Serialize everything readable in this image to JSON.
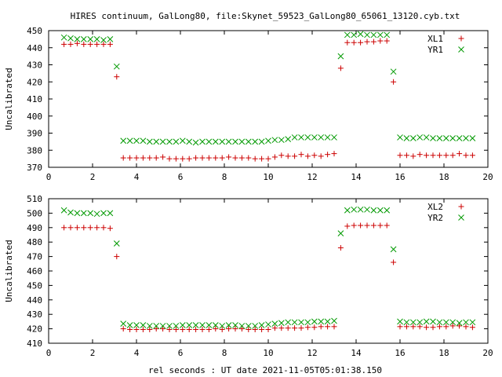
{
  "figure": {
    "title": "HIRES continuum, GalLong80, file:Skynet_59523_GalLong80_65061_13120.cyb.txt",
    "xlabel": "rel seconds : UT date 2021-11-05T05:01:38.150"
  },
  "colors": {
    "plus": "#cc0000",
    "cross": "#009900",
    "frame": "#000000"
  },
  "chart_data": [
    {
      "type": "scatter",
      "title": "HIRES continuum, GalLong80, file:Skynet_59523_GalLong80_65061_13120.cyb.txt",
      "xlabel": "",
      "ylabel": "Uncalibrated",
      "xlim": [
        0,
        20
      ],
      "ylim": [
        370,
        450
      ],
      "xticks": [
        0,
        2,
        4,
        6,
        8,
        10,
        12,
        14,
        16,
        18,
        20
      ],
      "yticks": [
        370,
        380,
        390,
        400,
        410,
        420,
        430,
        440,
        450
      ],
      "grid": false,
      "legend": "top-right",
      "series": [
        {
          "name": "XL1",
          "marker": "plus",
          "color": "#cc0000",
          "x": [
            0.7,
            1.0,
            1.3,
            1.6,
            1.9,
            2.2,
            2.5,
            2.8,
            3.1,
            3.4,
            3.7,
            4.0,
            4.3,
            4.6,
            4.9,
            5.2,
            5.5,
            5.8,
            6.1,
            6.4,
            6.7,
            7.0,
            7.3,
            7.6,
            7.9,
            8.2,
            8.5,
            8.8,
            9.1,
            9.4,
            9.7,
            10.0,
            10.3,
            10.6,
            10.9,
            11.2,
            11.5,
            11.8,
            12.1,
            12.4,
            12.7,
            13.0,
            13.3,
            13.6,
            13.9,
            14.2,
            14.5,
            14.8,
            15.1,
            15.4,
            15.7,
            16.0,
            16.3,
            16.6,
            16.9,
            17.2,
            17.5,
            17.8,
            18.1,
            18.4,
            18.7,
            19.0,
            19.3
          ],
          "y": [
            442,
            442,
            442.5,
            442,
            442,
            442,
            442,
            442,
            423,
            375.5,
            375.5,
            375.5,
            375.5,
            375.5,
            375.5,
            376,
            375,
            375,
            375,
            375,
            375.5,
            375.5,
            375.5,
            375.5,
            375.5,
            376,
            375.5,
            375.5,
            375.5,
            375,
            375,
            375,
            376,
            377,
            376.5,
            376.5,
            377.5,
            376.5,
            377,
            376.5,
            377.5,
            378,
            428,
            443,
            443,
            443,
            443.5,
            443.5,
            444,
            444,
            420,
            377,
            377,
            376.5,
            377.5,
            377,
            377,
            377,
            377,
            377,
            378,
            377,
            377
          ]
        },
        {
          "name": "YR1",
          "marker": "cross",
          "color": "#009900",
          "x": [
            0.7,
            1.0,
            1.3,
            1.6,
            1.9,
            2.2,
            2.5,
            2.8,
            3.1,
            3.4,
            3.7,
            4.0,
            4.3,
            4.6,
            4.9,
            5.2,
            5.5,
            5.8,
            6.1,
            6.4,
            6.7,
            7.0,
            7.3,
            7.6,
            7.9,
            8.2,
            8.5,
            8.8,
            9.1,
            9.4,
            9.7,
            10.0,
            10.3,
            10.6,
            10.9,
            11.2,
            11.5,
            11.8,
            12.1,
            12.4,
            12.7,
            13.0,
            13.3,
            13.6,
            13.9,
            14.2,
            14.5,
            14.8,
            15.1,
            15.4,
            15.7,
            16.0,
            16.3,
            16.6,
            16.9,
            17.2,
            17.5,
            17.8,
            18.1,
            18.4,
            18.7,
            19.0,
            19.3
          ],
          "y": [
            446,
            445.5,
            445,
            445,
            445,
            445,
            444.5,
            445,
            429,
            385.5,
            385.5,
            385.5,
            385.5,
            385,
            385,
            385,
            385,
            385,
            385.5,
            385,
            384.5,
            385,
            385,
            385,
            385,
            385,
            385,
            385,
            385,
            385,
            385,
            385.5,
            386,
            386,
            386.5,
            387.5,
            387.5,
            387.5,
            387.5,
            387.5,
            387.5,
            387.5,
            435,
            447.5,
            447.5,
            448,
            447.5,
            447.5,
            447.5,
            447.5,
            426,
            387.5,
            387,
            387,
            387.5,
            387.5,
            387,
            387,
            387,
            387,
            387,
            387,
            387
          ]
        }
      ]
    },
    {
      "type": "scatter",
      "title": "",
      "xlabel": "rel seconds : UT date 2021-11-05T05:01:38.150",
      "ylabel": "Uncalibrated",
      "xlim": [
        0,
        20
      ],
      "ylim": [
        410,
        510
      ],
      "xticks": [
        0,
        2,
        4,
        6,
        8,
        10,
        12,
        14,
        16,
        18,
        20
      ],
      "yticks": [
        410,
        420,
        430,
        440,
        450,
        460,
        470,
        480,
        490,
        500,
        510
      ],
      "grid": false,
      "legend": "top-right",
      "series": [
        {
          "name": "XL2",
          "marker": "plus",
          "color": "#cc0000",
          "x": [
            0.7,
            1.0,
            1.3,
            1.6,
            1.9,
            2.2,
            2.5,
            2.8,
            3.1,
            3.4,
            3.7,
            4.0,
            4.3,
            4.6,
            4.9,
            5.2,
            5.5,
            5.8,
            6.1,
            6.4,
            6.7,
            7.0,
            7.3,
            7.6,
            7.9,
            8.2,
            8.5,
            8.8,
            9.1,
            9.4,
            9.7,
            10.0,
            10.3,
            10.6,
            10.9,
            11.2,
            11.5,
            11.8,
            12.1,
            12.4,
            12.7,
            13.0,
            13.3,
            13.6,
            13.9,
            14.2,
            14.5,
            14.8,
            15.1,
            15.4,
            15.7,
            16.0,
            16.3,
            16.6,
            16.9,
            17.2,
            17.5,
            17.8,
            18.1,
            18.4,
            18.7,
            19.0,
            19.3
          ],
          "y": [
            490,
            490,
            490,
            490,
            490,
            490,
            490,
            489.5,
            470,
            420,
            419.5,
            419.5,
            419.5,
            419.5,
            420,
            420,
            419.5,
            419.5,
            419.5,
            419.5,
            419.5,
            419.5,
            419.5,
            420,
            419.5,
            420,
            420,
            420,
            419.5,
            419.5,
            419.5,
            419.5,
            420.5,
            420.5,
            420.5,
            420.5,
            420.5,
            421,
            421,
            421.5,
            421.5,
            421.5,
            476,
            491,
            491.5,
            491.5,
            491.5,
            491.5,
            491.5,
            491.5,
            466,
            421.5,
            421.5,
            421.5,
            421.5,
            421,
            421,
            421.5,
            421.5,
            422,
            422,
            421.5,
            421
          ]
        },
        {
          "name": "YR2",
          "marker": "cross",
          "color": "#009900",
          "x": [
            0.7,
            1.0,
            1.3,
            1.6,
            1.9,
            2.2,
            2.5,
            2.8,
            3.1,
            3.4,
            3.7,
            4.0,
            4.3,
            4.6,
            4.9,
            5.2,
            5.5,
            5.8,
            6.1,
            6.4,
            6.7,
            7.0,
            7.3,
            7.6,
            7.9,
            8.2,
            8.5,
            8.8,
            9.1,
            9.4,
            9.7,
            10.0,
            10.3,
            10.6,
            10.9,
            11.2,
            11.5,
            11.8,
            12.1,
            12.4,
            12.7,
            13.0,
            13.3,
            13.6,
            13.9,
            14.2,
            14.5,
            14.8,
            15.1,
            15.4,
            15.7,
            16.0,
            16.3,
            16.6,
            16.9,
            17.2,
            17.5,
            17.8,
            18.1,
            18.4,
            18.7,
            19.0,
            19.3
          ],
          "y": [
            502,
            500.5,
            500,
            500,
            500,
            499.5,
            500,
            500,
            479,
            423.5,
            422.5,
            422.5,
            422.5,
            422,
            422,
            422,
            422,
            422,
            422.5,
            422.5,
            422.5,
            422.5,
            422.5,
            422.5,
            422,
            422.5,
            422.5,
            422,
            422,
            422,
            422.5,
            423,
            423.5,
            424,
            424.5,
            424.5,
            424.5,
            424.5,
            425,
            425,
            425,
            425.5,
            486,
            502,
            502.5,
            502.5,
            502.5,
            502,
            502,
            502,
            475,
            425,
            424.5,
            424.5,
            424.5,
            425,
            425,
            424.5,
            424.5,
            424.5,
            424,
            424.5,
            424.5
          ]
        }
      ]
    }
  ]
}
